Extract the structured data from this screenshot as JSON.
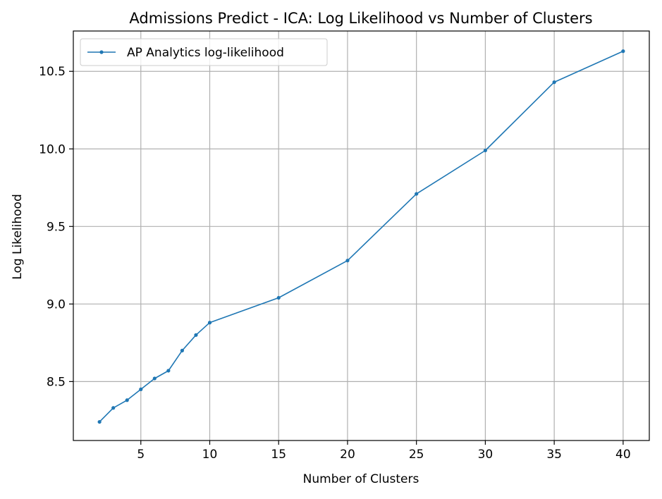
{
  "chart_data": {
    "type": "line",
    "title": "Admissions Predict - ICA: Log Likelihood vs Number of Clusters",
    "xlabel": "Number of Clusters",
    "ylabel": "Log Likelihood",
    "xlim": [
      0.1,
      41.9
    ],
    "ylim": [
      8.12,
      10.76
    ],
    "xticks": [
      5,
      10,
      15,
      20,
      25,
      30,
      35,
      40
    ],
    "yticks": [
      8.5,
      9.0,
      9.5,
      10.0,
      10.5
    ],
    "xtick_labels": [
      "5",
      "10",
      "15",
      "20",
      "25",
      "30",
      "35",
      "40"
    ],
    "ytick_labels": [
      "8.5",
      "9.0",
      "9.5",
      "10.0",
      "10.5"
    ],
    "grid": true,
    "legend_position": "top-left",
    "series": [
      {
        "name": "AP Analytics log-likelihood",
        "color": "#1f77b4",
        "x": [
          2,
          3,
          4,
          5,
          6,
          7,
          8,
          9,
          10,
          15,
          20,
          25,
          30,
          35,
          40
        ],
        "y": [
          8.24,
          8.33,
          8.38,
          8.45,
          8.52,
          8.57,
          8.7,
          8.8,
          8.88,
          9.04,
          9.28,
          9.71,
          9.99,
          10.43,
          10.63
        ]
      }
    ]
  }
}
